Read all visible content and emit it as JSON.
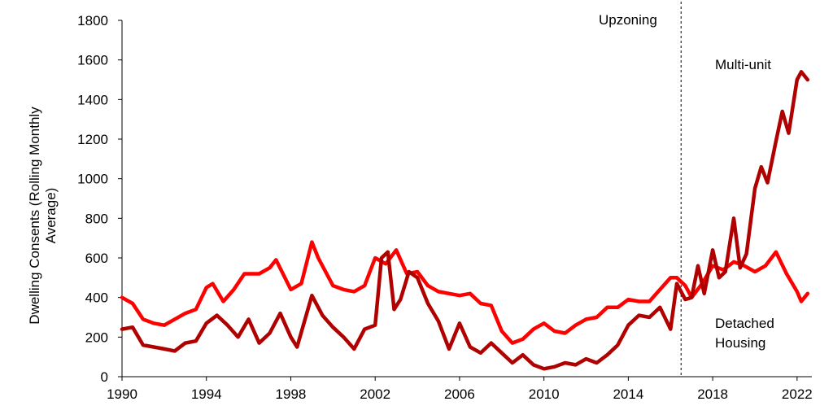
{
  "chart_data": {
    "type": "line",
    "ylabel_lines": [
      "Dwelling Consents (Rolling Monthly",
      "Average)"
    ],
    "xlim": [
      1990,
      2022.7
    ],
    "ylim": [
      0,
      1800
    ],
    "x_ticks": [
      1990,
      1994,
      1998,
      2002,
      2006,
      2010,
      2014,
      2018,
      2022
    ],
    "y_ticks": [
      0,
      200,
      400,
      600,
      800,
      1000,
      1200,
      1400,
      1600,
      1800
    ],
    "grid": false,
    "legend": "none",
    "reference_line": {
      "x": 2016.5,
      "label": "Upzoning",
      "style": "dashed"
    },
    "series": [
      {
        "name": "Detached Housing",
        "color": "#ff0000",
        "x": [
          1990,
          1990.5,
          1991,
          1991.5,
          1992,
          1992.5,
          1993,
          1993.5,
          1994,
          1994.3,
          1994.8,
          1995.3,
          1995.8,
          1996.5,
          1997,
          1997.3,
          1998,
          1998.5,
          1999,
          1999.3,
          2000,
          2000.5,
          2001,
          2001.5,
          2002,
          2002.5,
          2003,
          2003.5,
          2004,
          2004.5,
          2005,
          2005.5,
          2006,
          2006.5,
          2007,
          2007.5,
          2008,
          2008.5,
          2009,
          2009.5,
          2010,
          2010.5,
          2011,
          2011.5,
          2012,
          2012.5,
          2013,
          2013.5,
          2014,
          2014.5,
          2015,
          2015.5,
          2016,
          2016.3,
          2016.7,
          2017,
          2017.5,
          2018,
          2018.5,
          2019,
          2019.5,
          2020,
          2020.5,
          2021,
          2021.5,
          2022,
          2022.2,
          2022.5
        ],
        "values": [
          400,
          370,
          290,
          270,
          260,
          290,
          320,
          340,
          450,
          470,
          380,
          440,
          520,
          520,
          550,
          590,
          440,
          470,
          680,
          600,
          460,
          440,
          430,
          460,
          600,
          570,
          640,
          520,
          530,
          460,
          430,
          420,
          410,
          420,
          370,
          360,
          230,
          170,
          190,
          240,
          270,
          230,
          220,
          260,
          290,
          300,
          350,
          350,
          390,
          380,
          380,
          440,
          500,
          500,
          460,
          400,
          470,
          560,
          540,
          580,
          560,
          530,
          560,
          630,
          520,
          430,
          380,
          420
        ]
      },
      {
        "name": "Multi-unit",
        "color": "#b00000",
        "x": [
          1990,
          1990.5,
          1991,
          1991.5,
          1992,
          1992.5,
          1993,
          1993.5,
          1994,
          1994.5,
          1995,
          1995.5,
          1996,
          1996.5,
          1997,
          1997.5,
          1998,
          1998.3,
          1999,
          1999.5,
          2000,
          2000.5,
          2001,
          2001.5,
          2002,
          2002.3,
          2002.6,
          2002.9,
          2003.2,
          2003.6,
          2004,
          2004.5,
          2005,
          2005.5,
          2006,
          2006.5,
          2007,
          2007.5,
          2008,
          2008.5,
          2009,
          2009.5,
          2010,
          2010.5,
          2011,
          2011.5,
          2012,
          2012.5,
          2013,
          2013.5,
          2014,
          2014.5,
          2015,
          2015.5,
          2016,
          2016.3,
          2016.7,
          2017,
          2017.3,
          2017.6,
          2018,
          2018.3,
          2018.6,
          2019,
          2019.3,
          2019.6,
          2020,
          2020.3,
          2020.6,
          2021,
          2021.3,
          2021.6,
          2022,
          2022.2,
          2022.5
        ],
        "values": [
          240,
          250,
          160,
          150,
          140,
          130,
          170,
          180,
          270,
          310,
          260,
          200,
          290,
          170,
          220,
          320,
          200,
          150,
          410,
          310,
          250,
          200,
          140,
          240,
          260,
          600,
          630,
          340,
          390,
          530,
          500,
          370,
          280,
          140,
          270,
          150,
          120,
          170,
          120,
          70,
          110,
          60,
          40,
          50,
          70,
          60,
          90,
          70,
          110,
          160,
          260,
          310,
          300,
          350,
          240,
          470,
          390,
          400,
          560,
          420,
          640,
          500,
          530,
          800,
          550,
          620,
          950,
          1060,
          980,
          1190,
          1340,
          1230,
          1500,
          1540,
          1500
        ]
      }
    ],
    "annotations": {
      "multi_unit": "Multi-unit",
      "detached_line1": "Detached",
      "detached_line2": "Housing",
      "upzoning": "Upzoning"
    }
  }
}
